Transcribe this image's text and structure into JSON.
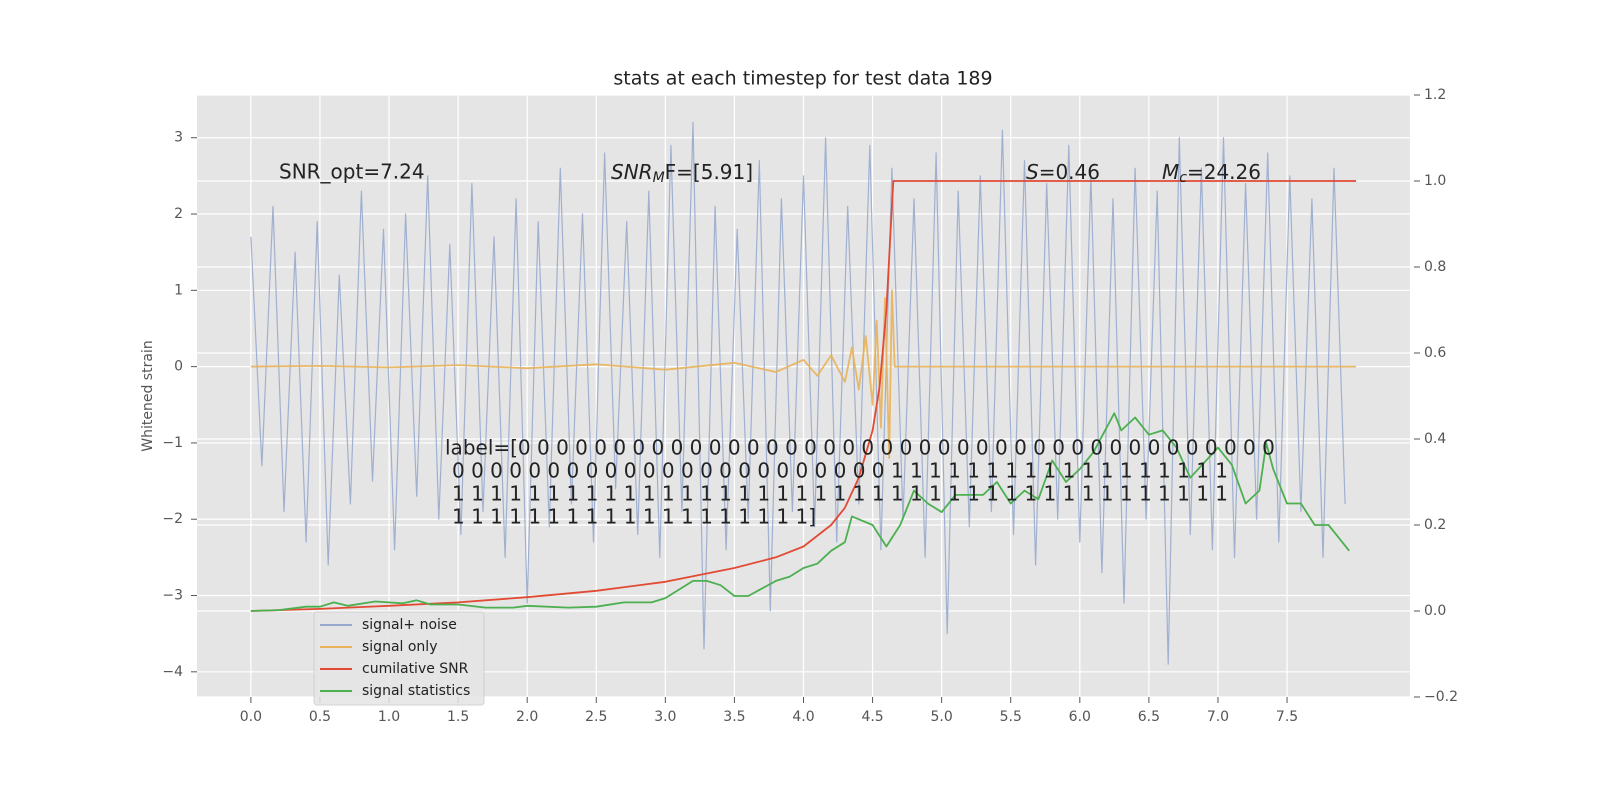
{
  "chart_data": {
    "type": "line",
    "title": "stats at each timestep for test data 189",
    "ylabel": "Whitened strain",
    "xlim": [
      -0.39,
      8.39
    ],
    "ylim": [
      -4.33,
      3.56
    ],
    "y2lim": [
      -0.2,
      1.2
    ],
    "xticks": [
      {
        "value": 0,
        "label": "0.0"
      },
      0.5,
      {
        "value": 1,
        "label": "1.0"
      },
      1.5,
      {
        "value": 2,
        "label": "2.0"
      },
      2.5,
      {
        "value": 3,
        "label": "3.0"
      },
      3.5,
      {
        "value": 4,
        "label": "4.0"
      },
      4.5,
      {
        "value": 5,
        "label": "5.0"
      },
      5.5,
      {
        "value": 6,
        "label": "6.0"
      },
      6.5,
      {
        "value": 7,
        "label": "7.0"
      },
      7.5
    ],
    "yticks": [
      {
        "value": -4,
        "label": "−4"
      },
      {
        "value": -3,
        "label": "−3"
      },
      {
        "value": -2,
        "label": "−2"
      },
      {
        "value": -1,
        "label": "−1"
      },
      0,
      1,
      2,
      3
    ],
    "y2ticks": [
      {
        "value": -0.2,
        "label": "−0.2"
      },
      {
        "value": 0,
        "label": "0.0"
      },
      0.2,
      0.4,
      0.6,
      0.8,
      {
        "value": 1,
        "label": "1.0"
      },
      1.2
    ],
    "grid": true,
    "legend": "lower left",
    "annotations": [
      "SNR_opt=7.24",
      {
        "base": "SNR",
        "sub": "M",
        "rest": "F=[5.91]"
      },
      {
        "base": "S",
        "rest": "=0.46"
      },
      {
        "base": "M",
        "sub": "c",
        "rest": "=24.26"
      }
    ],
    "label_text": [
      "label=[0 0 0 0 0 0 0 0 0 0 0 0 0 0 0 0 0 0 0 0 0 0 0 0 0 0 0 0 0 0 0 0 0 0 0 0 0 0 0 0",
      "0 0 0 0 0 0 0 0 0 0 0 0 0 0 0 0 0 0 0 0 0 0 0 1 1 1 1 1 1 1 1 1 1 1 1 1 1 1 1 1 1",
      "1 1 1 1 1 1 1 1 1 1 1 1 1 1 1 1 1 1 1 1 1 1 1 1 1 1 1 1 1 1 1 1 1 1 1 1 1 1 1 1 1",
      "1 1 1 1 1 1 1 1 1 1 1 1 1 1 1 1 1 1 1]"
    ],
    "series": [
      {
        "name": "signal+ noise",
        "color": "#98aacd",
        "x": [
          0,
          0.08,
          0.16,
          0.24,
          0.32,
          0.4,
          0.48,
          0.56,
          0.64,
          0.72,
          0.8,
          0.88,
          0.96,
          1.04,
          1.12,
          1.2,
          1.28,
          1.36,
          1.44,
          1.52,
          1.6,
          1.68,
          1.76,
          1.84,
          1.92,
          2,
          2.08,
          2.16,
          2.24,
          2.32,
          2.4,
          2.48,
          2.56,
          2.64,
          2.72,
          2.8,
          2.88,
          2.96,
          3.04,
          3.12,
          3.2,
          3.28,
          3.36,
          3.44,
          3.52,
          3.6,
          3.68,
          3.76,
          3.84,
          3.92,
          4,
          4.08,
          4.16,
          4.24,
          4.32,
          4.4,
          4.48,
          4.56,
          4.64,
          4.72,
          4.8,
          4.88,
          4.96,
          5.04,
          5.12,
          5.2,
          5.28,
          5.36,
          5.44,
          5.52,
          5.6,
          5.68,
          5.76,
          5.84,
          5.92,
          6,
          6.08,
          6.16,
          6.24,
          6.32,
          6.4,
          6.48,
          6.56,
          6.64,
          6.72,
          6.8,
          6.88,
          6.96,
          7.04,
          7.12,
          7.2,
          7.28,
          7.36,
          7.44,
          7.52,
          7.6,
          7.68,
          7.76,
          7.84,
          7.92
        ],
        "values": [
          1.7,
          -1.3,
          2.1,
          -1.9,
          1.5,
          -2.3,
          1.9,
          -2.6,
          1.2,
          -1.8,
          2.3,
          -1.5,
          1.8,
          -2.4,
          2.0,
          -1.7,
          2.5,
          -2.0,
          1.6,
          -2.2,
          2.4,
          -1.9,
          1.7,
          -2.5,
          2.2,
          -3.1,
          1.9,
          -2.1,
          2.6,
          -1.8,
          2.0,
          -2.3,
          2.8,
          -1.6,
          1.9,
          -2.2,
          2.3,
          -2.5,
          2.9,
          -1.9,
          3.2,
          -3.7,
          2.1,
          -2.4,
          1.8,
          -2.0,
          2.7,
          -3.2,
          2.2,
          -1.9,
          2.5,
          -2.1,
          3.0,
          -2.3,
          2.1,
          -1.8,
          2.9,
          -2.4,
          2.6,
          -2.0,
          2.2,
          -2.5,
          2.8,
          -3.5,
          2.3,
          -2.1,
          2.5,
          -1.9,
          3.1,
          -2.2,
          2.7,
          -2.6,
          2.4,
          -2.0,
          2.9,
          -2.3,
          2.5,
          -2.7,
          2.2,
          -3.1,
          2.6,
          -2.0,
          2.3,
          -3.9,
          3.0,
          -2.2,
          2.6,
          -2.4,
          3.0,
          -2.5,
          2.4,
          -2.0,
          2.8,
          -2.3,
          2.5,
          -1.9,
          2.2,
          -2.5,
          2.6,
          -1.8
        ]
      },
      {
        "name": "signal only",
        "color": "#e8b35a",
        "x": [
          0,
          0.5,
          1,
          1.5,
          2,
          2.5,
          3,
          3.5,
          3.8,
          4,
          4.1,
          4.2,
          4.3,
          4.35,
          4.4,
          4.45,
          4.5,
          4.53,
          4.56,
          4.59,
          4.62,
          4.64,
          4.66,
          8
        ],
        "values": [
          0,
          0.01,
          -0.01,
          0.02,
          -0.02,
          0.03,
          -0.04,
          0.05,
          -0.07,
          0.09,
          -0.12,
          0.15,
          -0.2,
          0.25,
          -0.3,
          0.4,
          -0.5,
          0.6,
          -0.8,
          0.9,
          -1.2,
          1.0,
          0,
          0
        ]
      },
      {
        "name": "cumilative SNR",
        "color": "#e24a33",
        "axis": "y2",
        "x": [
          0,
          0.5,
          1,
          1.5,
          2,
          2.5,
          3,
          3.5,
          3.8,
          4,
          4.2,
          4.3,
          4.4,
          4.5,
          4.55,
          4.6,
          4.63,
          4.65,
          8
        ],
        "values": [
          0,
          0.005,
          0.012,
          0.02,
          0.032,
          0.047,
          0.068,
          0.1,
          0.125,
          0.15,
          0.2,
          0.24,
          0.31,
          0.42,
          0.52,
          0.7,
          0.88,
          1.0,
          1.0
        ]
      },
      {
        "name": "signal statistics",
        "color": "#4caf50",
        "axis": "y2",
        "x": [
          0,
          0.2,
          0.4,
          0.5,
          0.6,
          0.7,
          0.9,
          1.1,
          1.2,
          1.3,
          1.5,
          1.7,
          1.9,
          2.0,
          2.3,
          2.5,
          2.7,
          2.9,
          3.0,
          3.2,
          3.3,
          3.4,
          3.5,
          3.6,
          3.8,
          3.9,
          4.0,
          4.1,
          4.2,
          4.3,
          4.35,
          4.5,
          4.6,
          4.7,
          4.8,
          4.9,
          5.0,
          5.1,
          5.3,
          5.4,
          5.5,
          5.6,
          5.7,
          5.8,
          5.9,
          6.0,
          6.1,
          6.25,
          6.3,
          6.4,
          6.5,
          6.6,
          6.7,
          6.8,
          7.0,
          7.1,
          7.2,
          7.3,
          7.35,
          7.4,
          7.5,
          7.6,
          7.7,
          7.8,
          7.85,
          7.95
        ],
        "values": [
          0,
          0.002,
          0.01,
          0.01,
          0.02,
          0.012,
          0.022,
          0.018,
          0.025,
          0.015,
          0.015,
          0.008,
          0.008,
          0.012,
          0.008,
          0.01,
          0.02,
          0.02,
          0.03,
          0.07,
          0.07,
          0.06,
          0.035,
          0.035,
          0.07,
          0.08,
          0.1,
          0.11,
          0.14,
          0.16,
          0.22,
          0.2,
          0.15,
          0.2,
          0.28,
          0.25,
          0.23,
          0.27,
          0.27,
          0.3,
          0.25,
          0.28,
          0.26,
          0.35,
          0.3,
          0.33,
          0.37,
          0.46,
          0.42,
          0.45,
          0.41,
          0.42,
          0.38,
          0.31,
          0.38,
          0.34,
          0.25,
          0.28,
          0.39,
          0.33,
          0.25,
          0.25,
          0.2,
          0.2,
          0.18,
          0.14
        ]
      }
    ]
  }
}
